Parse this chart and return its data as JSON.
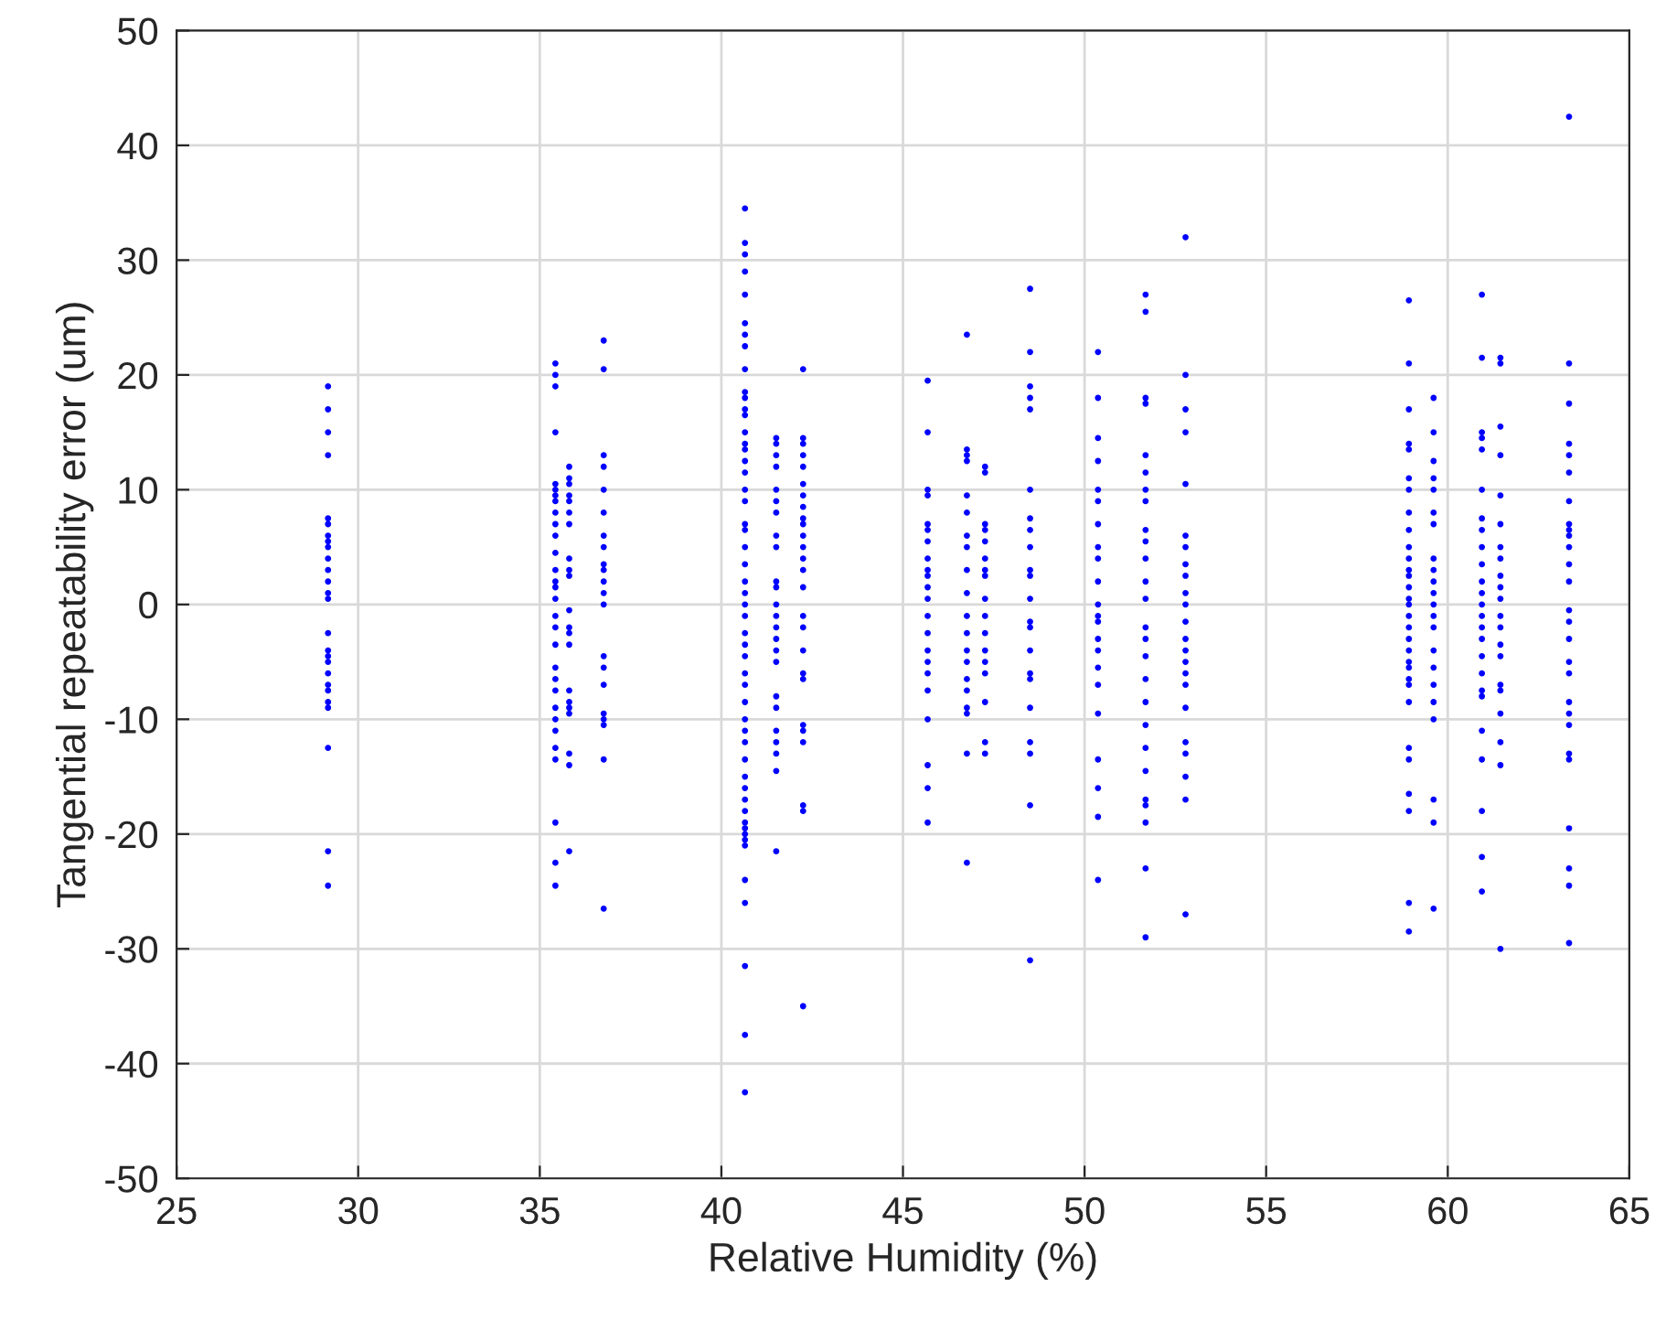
{
  "chart_data": {
    "type": "scatter",
    "xlabel": "Relative Humidity (%)",
    "ylabel": "Tangential repeatability error (um)",
    "xlim": [
      25,
      65
    ],
    "xticks": [
      25,
      30,
      35,
      40,
      45,
      50,
      55,
      60,
      65
    ],
    "ylim": [
      -50,
      50
    ],
    "yticks": [
      -50,
      -40,
      -30,
      -20,
      -10,
      0,
      10,
      20,
      30,
      40,
      50
    ],
    "grid": true,
    "marker": "circle",
    "series": [
      {
        "color": "#0000ff",
        "x": [
          29.17,
          29.17,
          29.17,
          29.17,
          29.17,
          29.17,
          29.17,
          29.17,
          29.17,
          29.17,
          29.17,
          29.17,
          29.17,
          29.17,
          29.17,
          29.17,
          29.17,
          29.17,
          29.17,
          29.17,
          29.17,
          29.17,
          29.17,
          29.17,
          29.17,
          29.17
        ],
        "values": [
          19,
          17,
          15,
          13,
          7.5,
          7,
          6,
          5.5,
          5,
          4,
          3,
          2,
          1,
          0.5,
          -2.5,
          -4,
          -4.5,
          -5,
          -6,
          -7,
          -7.5,
          -8.5,
          -9,
          -12.5,
          -21.5,
          -24.5
        ]
      },
      {
        "color": "#0000ff",
        "x": [
          35.43,
          35.43,
          35.43,
          35.43,
          35.43,
          35.43,
          35.43,
          35.43,
          35.43,
          35.43,
          35.43,
          35.43,
          35.43,
          35.43,
          35.43,
          35.43,
          35.43,
          35.43,
          35.43,
          35.43,
          35.43,
          35.43,
          35.43,
          35.43,
          35.43,
          35.43,
          35.43,
          35.43,
          35.43,
          35.43
        ],
        "values": [
          21,
          20,
          19,
          15,
          10.5,
          10,
          9.5,
          9,
          8,
          7,
          6,
          4.5,
          3,
          2,
          1.5,
          0.5,
          -1,
          -2,
          -3.5,
          -5.5,
          -6.5,
          -7.5,
          -9,
          -10,
          -11,
          -12.5,
          -13.5,
          -19,
          -22.5,
          -24.5
        ]
      },
      {
        "color": "#0000ff",
        "x": [
          35.81,
          35.81,
          35.81,
          35.81,
          35.81,
          35.81,
          35.81,
          35.81,
          35.81,
          35.81,
          35.81,
          35.81,
          35.81,
          35.81,
          35.81,
          35.81,
          35.81,
          35.81,
          35.81,
          35.81,
          35.81
        ],
        "values": [
          12,
          11,
          10.5,
          9.5,
          9,
          8,
          7,
          4,
          3,
          2.5,
          -0.5,
          -2,
          -2.5,
          -3.5,
          -7.5,
          -8.5,
          -9,
          -9.5,
          -13,
          -14,
          -21.5
        ]
      },
      {
        "color": "#0000ff",
        "x": [
          36.76,
          36.76,
          36.76,
          36.76,
          36.76,
          36.76,
          36.76,
          36.76,
          36.76,
          36.76,
          36.76,
          36.76,
          36.76,
          36.76,
          36.76,
          36.76,
          36.76,
          36.76,
          36.76,
          36.76,
          36.76
        ],
        "values": [
          23,
          20.5,
          13,
          12,
          10,
          8,
          6,
          5,
          3.5,
          3,
          2,
          1,
          0,
          -4.5,
          -5.5,
          -7,
          -9.5,
          -10,
          -10.5,
          -13.5,
          -26.5
        ]
      },
      {
        "color": "#0000ff",
        "x": [
          40.65,
          40.65,
          40.65,
          40.65,
          40.65,
          40.65,
          40.65,
          40.65,
          40.65,
          40.65,
          40.65,
          40.65,
          40.65,
          40.65,
          40.65,
          40.65,
          40.65,
          40.65,
          40.65,
          40.65,
          40.65,
          40.65,
          40.65,
          40.65,
          40.65,
          40.65,
          40.65,
          40.65,
          40.65,
          40.65,
          40.65,
          40.65,
          40.65,
          40.65,
          40.65,
          40.65,
          40.65,
          40.65,
          40.65,
          40.65,
          40.65,
          40.65,
          40.65,
          40.65,
          40.65,
          40.65,
          40.65,
          40.65,
          40.65,
          40.65,
          40.65,
          40.65
        ],
        "values": [
          34.5,
          31.5,
          30.5,
          29,
          27,
          24.5,
          23.5,
          22.5,
          20.5,
          18.5,
          18,
          17,
          16.5,
          15,
          14,
          13.5,
          12.5,
          11.5,
          10,
          9,
          7,
          6.5,
          5,
          3.5,
          2,
          1,
          0,
          -1,
          -2.5,
          -3.5,
          -4.5,
          -6,
          -7,
          -8.5,
          -10,
          -11,
          -12,
          -13.5,
          -15,
          -16,
          -17,
          -18,
          -19,
          -19.5,
          -20,
          -20.5,
          -21,
          -24,
          -26,
          -31.5,
          -37.5,
          -42.5
        ]
      },
      {
        "color": "#0000ff",
        "x": [
          41.51,
          41.51,
          41.51,
          41.51,
          41.51,
          41.51,
          41.51,
          41.51,
          41.51,
          41.51,
          41.51,
          41.51,
          41.51,
          41.51,
          41.51,
          41.51,
          41.51,
          41.51,
          41.51,
          41.51,
          41.51,
          41.51,
          41.51,
          41.51
        ],
        "values": [
          14.5,
          14,
          13,
          12,
          10,
          9,
          8,
          6,
          5,
          2,
          1.5,
          0,
          -1,
          -2,
          -3,
          -4,
          -5,
          -8,
          -9,
          -11,
          -12,
          -13,
          -14.5,
          -21.5
        ]
      },
      {
        "color": "#0000ff",
        "x": [
          42.25,
          42.25,
          42.25,
          42.25,
          42.25,
          42.25,
          42.25,
          42.25,
          42.25,
          42.25,
          42.25,
          42.25,
          42.25,
          42.25,
          42.25,
          42.25,
          42.25,
          42.25,
          42.25,
          42.25,
          42.25,
          42.25,
          42.25,
          42.25,
          42.25,
          42.25
        ],
        "values": [
          20.5,
          14.5,
          14,
          13,
          12,
          10.5,
          9.5,
          8.5,
          7.5,
          7,
          6,
          5,
          4,
          3,
          1.5,
          -1,
          -2,
          -4,
          -6,
          -6.5,
          -10.5,
          -11,
          -12,
          -17.5,
          -18,
          -35
        ]
      },
      {
        "color": "#0000ff",
        "x": [
          45.68,
          45.68,
          45.68,
          45.68,
          45.68,
          45.68,
          45.68,
          45.68,
          45.68,
          45.68,
          45.68,
          45.68,
          45.68,
          45.68,
          45.68,
          45.68,
          45.68,
          45.68,
          45.68,
          45.68,
          45.68,
          45.68
        ],
        "values": [
          19.5,
          15,
          10,
          9.5,
          7,
          6.5,
          5.5,
          4,
          3,
          2.5,
          1.5,
          0.5,
          -1,
          -2.5,
          -4,
          -5,
          -6,
          -7.5,
          -10,
          -14,
          -16,
          -19
        ]
      },
      {
        "color": "#0000ff",
        "x": [
          46.76,
          46.76,
          46.76,
          46.76,
          46.76,
          46.76,
          46.76,
          46.76,
          46.76,
          46.76,
          46.76,
          46.76,
          46.76,
          46.76,
          46.76,
          46.76,
          46.76,
          46.76,
          46.76,
          46.76
        ],
        "values": [
          23.5,
          13.5,
          13,
          12.5,
          9.5,
          8,
          6,
          5,
          3,
          1,
          -1,
          -2.5,
          -4,
          -5,
          -6.5,
          -7.5,
          -9,
          -9.5,
          -13,
          -22.5
        ]
      },
      {
        "color": "#0000ff",
        "x": [
          47.26,
          47.26,
          47.26,
          47.26,
          47.26,
          47.26,
          47.26,
          47.26,
          47.26,
          47.26,
          47.26,
          47.26,
          47.26,
          47.26,
          47.26,
          47.26,
          47.26
        ],
        "values": [
          12,
          11.5,
          7,
          6.5,
          5.5,
          4,
          3,
          2.5,
          0.5,
          -1,
          -2.5,
          -4,
          -5,
          -6,
          -8.5,
          -12,
          -13
        ]
      },
      {
        "color": "#0000ff",
        "x": [
          48.5,
          48.5,
          48.5,
          48.5,
          48.5,
          48.5,
          48.5,
          48.5,
          48.5,
          48.5,
          48.5,
          48.5,
          48.5,
          48.5,
          48.5,
          48.5,
          48.5,
          48.5,
          48.5,
          48.5,
          48.5,
          48.5
        ],
        "values": [
          27.5,
          22,
          19,
          18,
          17,
          10,
          7.5,
          6.5,
          5,
          3,
          2.5,
          0.5,
          -1.5,
          -2,
          -4,
          -6,
          -6.5,
          -9,
          -12,
          -13,
          -17.5,
          -31
        ]
      },
      {
        "color": "#0000ff",
        "x": [
          50.37,
          50.37,
          50.37,
          50.37,
          50.37,
          50.37,
          50.37,
          50.37,
          50.37,
          50.37,
          50.37,
          50.37,
          50.37,
          50.37,
          50.37,
          50.37,
          50.37,
          50.37,
          50.37,
          50.37,
          50.37,
          50.37
        ],
        "values": [
          22,
          18,
          14.5,
          12.5,
          10,
          9,
          7,
          5,
          4,
          2,
          0,
          -1,
          -1.5,
          -3,
          -4,
          -5.5,
          -7,
          -9.5,
          -13.5,
          -16,
          -18.5,
          -24
        ]
      },
      {
        "color": "#0000ff",
        "x": [
          51.68,
          51.68,
          51.68,
          51.68,
          51.68,
          51.68,
          51.68,
          51.68,
          51.68,
          51.68,
          51.68,
          51.68,
          51.68,
          51.68,
          51.68,
          51.68,
          51.68,
          51.68,
          51.68,
          51.68,
          51.68,
          51.68,
          51.68,
          51.68,
          51.68,
          51.68
        ],
        "values": [
          27,
          25.5,
          18,
          17.5,
          13,
          11.5,
          10,
          9,
          6.5,
          5.5,
          4,
          2,
          0.5,
          -2,
          -3,
          -4.5,
          -6.5,
          -8.5,
          -10.5,
          -12.5,
          -14.5,
          -17,
          -17.5,
          -19,
          -23,
          -29
        ]
      },
      {
        "color": "#0000ff",
        "x": [
          52.78,
          52.78,
          52.78,
          52.78,
          52.78,
          52.78,
          52.78,
          52.78,
          52.78,
          52.78,
          52.78,
          52.78,
          52.78,
          52.78,
          52.78,
          52.78,
          52.78,
          52.78,
          52.78,
          52.78,
          52.78,
          52.78,
          52.78
        ],
        "values": [
          32,
          20,
          17,
          15,
          10.5,
          6,
          5,
          3.5,
          2.5,
          1,
          0,
          -1.5,
          -3,
          -4,
          -5,
          -6,
          -7,
          -9,
          -12,
          -13,
          -15,
          -17,
          -27
        ]
      },
      {
        "color": "#0000ff",
        "x": [
          58.93,
          58.93,
          58.93,
          58.93,
          58.93,
          58.93,
          58.93,
          58.93,
          58.93,
          58.93,
          58.93,
          58.93,
          58.93,
          58.93,
          58.93,
          58.93,
          58.93,
          58.93,
          58.93,
          58.93,
          58.93,
          58.93,
          58.93,
          58.93,
          58.93,
          58.93,
          58.93,
          58.93,
          58.93,
          58.93,
          58.93
        ],
        "values": [
          26.5,
          21,
          17,
          14,
          13.5,
          11,
          10,
          8,
          6.5,
          5,
          4,
          3,
          2.5,
          1.5,
          0.5,
          0,
          -1,
          -2,
          -3,
          -4,
          -5,
          -5.5,
          -6.5,
          -7,
          -8.5,
          -12.5,
          -13.5,
          -16.5,
          -18,
          -26,
          -28.5
        ]
      },
      {
        "color": "#0000ff",
        "x": [
          59.61,
          59.61,
          59.61,
          59.61,
          59.61,
          59.61,
          59.61,
          59.61,
          59.61,
          59.61,
          59.61,
          59.61,
          59.61,
          59.61,
          59.61,
          59.61,
          59.61,
          59.61,
          59.61,
          59.61,
          59.61,
          59.61
        ],
        "values": [
          18,
          15,
          12.5,
          11,
          10,
          8,
          7,
          4,
          3,
          2,
          1,
          0,
          -1,
          -2,
          -4,
          -5.5,
          -7,
          -8.5,
          -10,
          -17,
          -19,
          -26.5
        ]
      },
      {
        "color": "#0000ff",
        "x": [
          60.94,
          60.94,
          60.94,
          60.94,
          60.94,
          60.94,
          60.94,
          60.94,
          60.94,
          60.94,
          60.94,
          60.94,
          60.94,
          60.94,
          60.94,
          60.94,
          60.94,
          60.94,
          60.94,
          60.94,
          60.94,
          60.94,
          60.94,
          60.94,
          60.94
        ],
        "values": [
          27,
          21.5,
          15,
          14.5,
          13.5,
          10,
          7.5,
          6.5,
          5,
          3.5,
          2,
          1,
          0,
          -1,
          -2,
          -3,
          -4.5,
          -6,
          -7.5,
          -8,
          -11,
          -13.5,
          -18,
          -22,
          -25
        ]
      },
      {
        "color": "#0000ff",
        "x": [
          61.45,
          61.45,
          61.45,
          61.45,
          61.45,
          61.45,
          61.45,
          61.45,
          61.45,
          61.45,
          61.45,
          61.45,
          61.45,
          61.45,
          61.45,
          61.45,
          61.45,
          61.45,
          61.45,
          61.45,
          61.45
        ],
        "values": [
          21.5,
          21,
          15.5,
          13,
          9.5,
          7,
          5,
          4,
          2.5,
          1.5,
          0.5,
          -1,
          -2,
          -3.5,
          -4.5,
          -7,
          -7.5,
          -9.5,
          -12,
          -14,
          -30
        ]
      },
      {
        "color": "#0000ff",
        "x": [
          63.34,
          63.34,
          63.34,
          63.34,
          63.34,
          63.34,
          63.34,
          63.34,
          63.34,
          63.34,
          63.34,
          63.34,
          63.34,
          63.34,
          63.34,
          63.34,
          63.34,
          63.34,
          63.34,
          63.34,
          63.34,
          63.34,
          63.34,
          63.34,
          63.34,
          63.34,
          63.34
        ],
        "values": [
          42.5,
          21,
          17.5,
          14,
          13,
          11.5,
          9,
          7,
          6.5,
          6,
          5,
          3.5,
          2,
          -0.5,
          -1.5,
          -3,
          -5,
          -6,
          -8.5,
          -9.5,
          -10.5,
          -13,
          -13.5,
          -19.5,
          -23,
          -24.5,
          -29.5
        ]
      }
    ]
  }
}
